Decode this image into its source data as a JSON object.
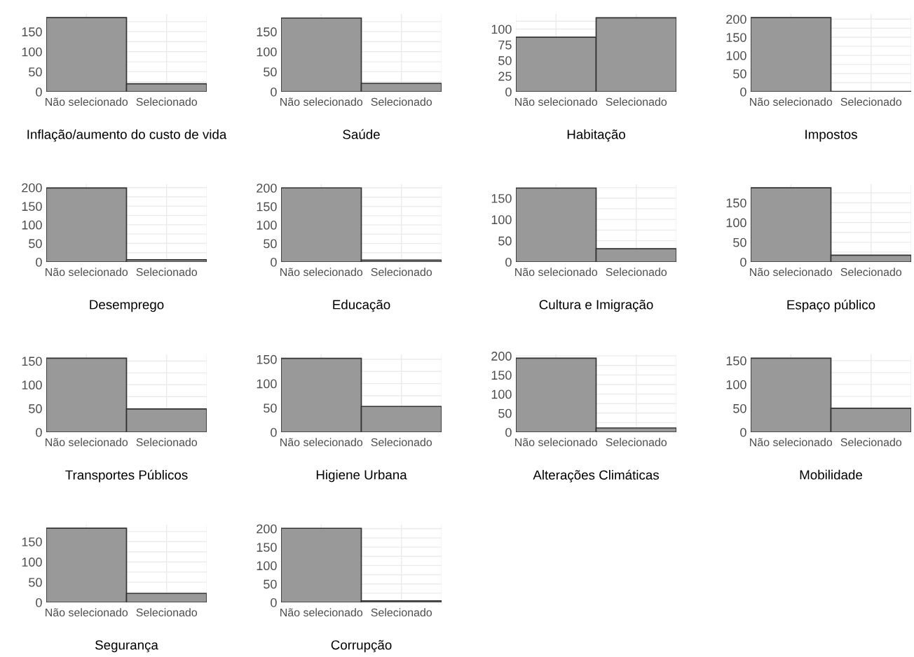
{
  "chart_data": [
    {
      "type": "bar",
      "xlabel": "Inflação/aumento do custo de vida",
      "categories": [
        "Não selecionado",
        "Selecionado"
      ],
      "values": [
        185,
        20
      ],
      "color": "#999999",
      "ylim": [
        0,
        194
      ],
      "yticks": [
        0,
        {
          "value": 25,
          "label": null
        },
        50,
        {
          "value": 75,
          "label": null
        },
        100,
        {
          "value": 125,
          "label": null
        },
        150,
        {
          "value": 175,
          "label": null
        }
      ],
      "grid": true
    },
    {
      "type": "bar",
      "xlabel": "Saúde",
      "categories": [
        "Não selecionado",
        "Selecionado"
      ],
      "values": [
        184,
        21
      ],
      "color": "#999999",
      "ylim": [
        0,
        194
      ],
      "yticks": [
        0,
        {
          "value": 25,
          "label": null
        },
        50,
        {
          "value": 75,
          "label": null
        },
        100,
        {
          "value": 125,
          "label": null
        },
        150,
        {
          "value": 175,
          "label": null
        }
      ],
      "grid": true
    },
    {
      "type": "bar",
      "xlabel": "Habitação",
      "categories": [
        "Não selecionado",
        "Selecionado"
      ],
      "values": [
        87,
        118
      ],
      "color": "#999999",
      "ylim": [
        0,
        124
      ],
      "yticks": [
        0,
        25,
        50,
        75,
        100,
        {
          "value": 112.5,
          "label": null
        }
      ],
      "grid": true
    },
    {
      "type": "bar",
      "xlabel": "Impostos",
      "categories": [
        "Não selecionado",
        "Selecionado"
      ],
      "values": [
        204,
        1
      ],
      "color": "#999999",
      "ylim": [
        0,
        214
      ],
      "yticks": [
        0,
        {
          "value": 25,
          "label": null
        },
        50,
        {
          "value": 75,
          "label": null
        },
        100,
        {
          "value": 125,
          "label": null
        },
        150,
        {
          "value": 175,
          "label": null
        },
        200
      ],
      "grid": true
    },
    {
      "type": "bar",
      "xlabel": "Desemprego",
      "categories": [
        "Não selecionado",
        "Selecionado"
      ],
      "values": [
        199,
        6
      ],
      "color": "#999999",
      "ylim": [
        0,
        209
      ],
      "yticks": [
        0,
        {
          "value": 25,
          "label": null
        },
        50,
        {
          "value": 75,
          "label": null
        },
        100,
        {
          "value": 125,
          "label": null
        },
        150,
        {
          "value": 175,
          "label": null
        },
        200
      ],
      "grid": true
    },
    {
      "type": "bar",
      "xlabel": "Educação",
      "categories": [
        "Não selecionado",
        "Selecionado"
      ],
      "values": [
        200,
        5
      ],
      "color": "#999999",
      "ylim": [
        0,
        210
      ],
      "yticks": [
        0,
        {
          "value": 25,
          "label": null
        },
        50,
        {
          "value": 75,
          "label": null
        },
        100,
        {
          "value": 125,
          "label": null
        },
        150,
        {
          "value": 175,
          "label": null
        },
        200
      ],
      "grid": true
    },
    {
      "type": "bar",
      "xlabel": "Cultura e Imigração",
      "categories": [
        "Não selecionado",
        "Selecionado"
      ],
      "values": [
        174,
        31
      ],
      "color": "#999999",
      "ylim": [
        0,
        183
      ],
      "yticks": [
        0,
        50,
        {
          "value": 75,
          "label": null
        },
        100,
        {
          "value": 125,
          "label": null
        },
        150,
        {
          "value": 175,
          "label": null
        }
      ],
      "grid": true
    },
    {
      "type": "bar",
      "xlabel": "Espaço público",
      "categories": [
        "Não selecionado",
        "Selecionado"
      ],
      "values": [
        188,
        17
      ],
      "color": "#999999",
      "ylim": [
        0,
        197
      ],
      "yticks": [
        0,
        {
          "value": 25,
          "label": null
        },
        50,
        {
          "value": 75,
          "label": null
        },
        100,
        {
          "value": 125,
          "label": null
        },
        150,
        {
          "value": 175,
          "label": null
        }
      ],
      "grid": true
    },
    {
      "type": "bar",
      "xlabel": "Transportes Públicos",
      "categories": [
        "Não selecionado",
        "Selecionado"
      ],
      "values": [
        156,
        49
      ],
      "color": "#999999",
      "ylim": [
        0,
        164
      ],
      "yticks": [
        0,
        50,
        {
          "value": 75,
          "label": null
        },
        100,
        {
          "value": 125,
          "label": null
        },
        150
      ],
      "grid": true
    },
    {
      "type": "bar",
      "xlabel": "Higiene Urbana",
      "categories": [
        "Não selecionado",
        "Selecionado"
      ],
      "values": [
        152,
        53
      ],
      "color": "#999999",
      "ylim": [
        0,
        160
      ],
      "yticks": [
        0,
        50,
        {
          "value": 75,
          "label": null
        },
        100,
        {
          "value": 125,
          "label": null
        },
        150
      ],
      "grid": true
    },
    {
      "type": "bar",
      "xlabel": "Alterações Climáticas",
      "categories": [
        "Não selecionado",
        "Selecionado"
      ],
      "values": [
        194,
        11
      ],
      "color": "#999999",
      "ylim": [
        0,
        204
      ],
      "yticks": [
        0,
        {
          "value": 25,
          "label": null
        },
        50,
        {
          "value": 75,
          "label": null
        },
        100,
        {
          "value": 125,
          "label": null
        },
        150,
        {
          "value": 175,
          "label": null
        },
        200
      ],
      "grid": true
    },
    {
      "type": "bar",
      "xlabel": "Mobilidade",
      "categories": [
        "Não selecionado",
        "Selecionado"
      ],
      "values": [
        155,
        50
      ],
      "color": "#999999",
      "ylim": [
        0,
        163
      ],
      "yticks": [
        0,
        50,
        {
          "value": 75,
          "label": null
        },
        100,
        {
          "value": 125,
          "label": null
        },
        150
      ],
      "grid": true
    },
    {
      "type": "bar",
      "xlabel": "Segurança",
      "categories": [
        "Não selecionado",
        "Selecionado"
      ],
      "values": [
        183,
        22
      ],
      "color": "#999999",
      "ylim": [
        0,
        192
      ],
      "yticks": [
        0,
        {
          "value": 25,
          "label": null
        },
        50,
        {
          "value": 75,
          "label": null
        },
        100,
        {
          "value": 125,
          "label": null
        },
        150,
        {
          "value": 175,
          "label": null
        }
      ],
      "grid": true
    },
    {
      "type": "bar",
      "xlabel": "Corrupção",
      "categories": [
        "Não selecionado",
        "Selecionado"
      ],
      "values": [
        201,
        4
      ],
      "color": "#999999",
      "ylim": [
        0,
        211
      ],
      "yticks": [
        0,
        {
          "value": 25,
          "label": null
        },
        50,
        {
          "value": 75,
          "label": null
        },
        100,
        {
          "value": 125,
          "label": null
        },
        150,
        {
          "value": 175,
          "label": null
        },
        200
      ],
      "grid": true
    }
  ]
}
